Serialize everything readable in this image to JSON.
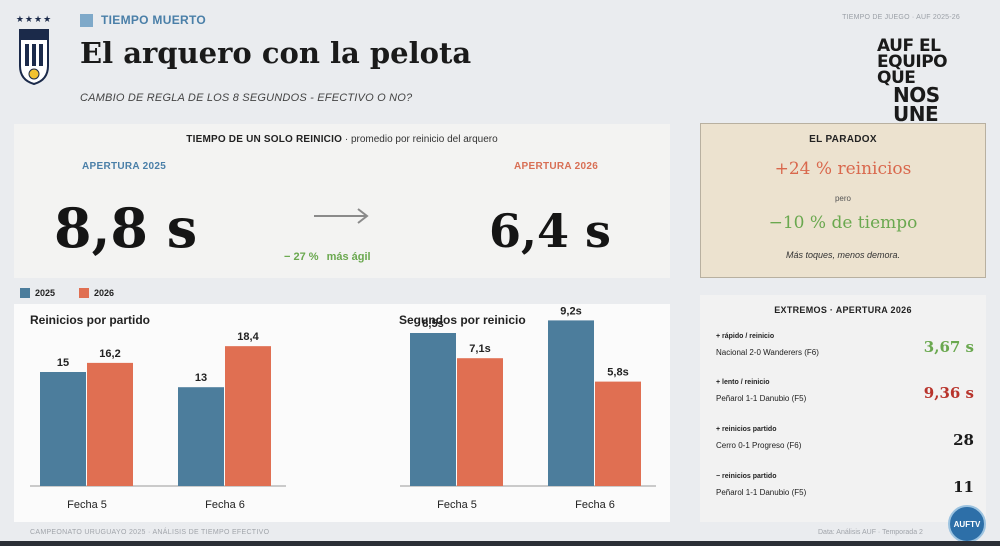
{
  "header": {
    "section_tag": "TIEMPO MUERTO",
    "title": "El arquero con la pelota",
    "subtitle": "CAMBIO DE REGLA DE LOS 8 SEGUNDOS - EFECTIVO O NO?",
    "meta": "TIEMPO DE JUEGO · AUF 2025-26",
    "slogan_line1": "AUF EL EQUIPO QUE",
    "slogan_line2": "NOS UNE",
    "crest_stars": "★★★★",
    "crest_letters": "AUF"
  },
  "hero": {
    "heading_bold": "TIEMPO DE UN SOLO REINICIO",
    "heading_rest": " · promedio por reinicio del arquero",
    "season_a": "APERTURA 2025",
    "season_b": "APERTURA 2026",
    "value_a": "8,8 s",
    "value_b": "6,4 s",
    "delta": "− 27 %",
    "delta_label": "más ágil"
  },
  "paradox": {
    "title": "EL PARADOX",
    "up": "+24 % reinicios",
    "pero": "pero",
    "down": "−10 % de tiempo",
    "note": "Más toques, menos demora."
  },
  "legend": [
    {
      "label": "2025",
      "color": "#4c7d9c"
    },
    {
      "label": "2026",
      "color": "#e06f52"
    }
  ],
  "chart_data": [
    {
      "type": "bar",
      "title": "Reinicios por partido",
      "categories": [
        "Fecha 5",
        "Fecha 6"
      ],
      "series": [
        {
          "name": "2025",
          "values": [
            15,
            13
          ],
          "labels": [
            "15",
            "13"
          ]
        },
        {
          "name": "2026",
          "values": [
            16.2,
            18.4
          ],
          "labels": [
            "16,2",
            "18,4"
          ]
        }
      ],
      "ylim": [
        0,
        20
      ]
    },
    {
      "type": "bar",
      "title": "Segundos por reinicio",
      "categories": [
        "Fecha 5",
        "Fecha 6"
      ],
      "series": [
        {
          "name": "2025",
          "values": [
            8.5,
            9.2
          ],
          "labels": [
            "8,5s",
            "9,2s"
          ]
        },
        {
          "name": "2026",
          "values": [
            7.1,
            5.8
          ],
          "labels": [
            "7,1s",
            "5,8s"
          ]
        }
      ],
      "ylim": [
        0,
        10
      ]
    }
  ],
  "extremos": {
    "title": "EXTREMOS · APERTURA 2026",
    "items": [
      {
        "label": "+ rápido / reinicio",
        "match": "Nacional 2-0 Wanderers (F6)",
        "value": "3,67 s",
        "color": "#6aa84f"
      },
      {
        "label": "+ lento / reinicio",
        "match": "Peñarol 1-1 Danubio (F5)",
        "value": "9,36 s",
        "color": "#b8342c"
      },
      {
        "label": "+ reinicios partido",
        "match": "Cerro 0-1 Progreso (F6)",
        "value": "28",
        "color": "#1a1a1a"
      },
      {
        "label": "− reinicios partido",
        "match": "Peñarol 1-1 Danubio (F5)",
        "value": "11",
        "color": "#1a1a1a"
      }
    ]
  },
  "footer": {
    "left": "CAMPEONATO URUGUAYO 2025 · ANÁLISIS DE TIEMPO EFECTIVO",
    "right": "Data: Análisis AUF · Temporada 2",
    "badge": "AUFTV"
  }
}
